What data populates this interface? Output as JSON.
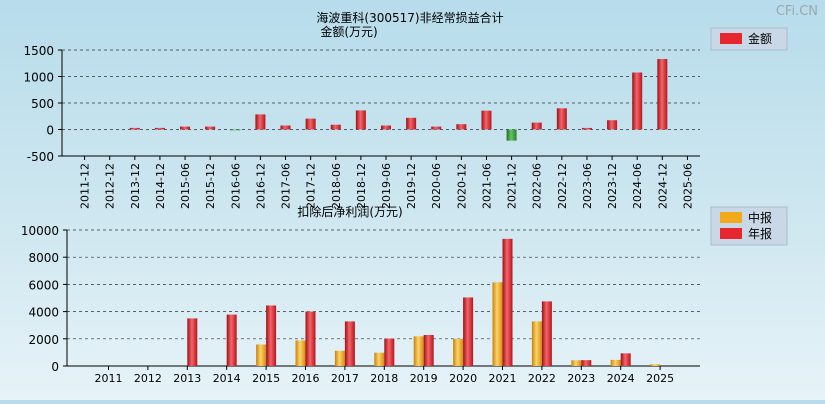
{
  "watermark": "CFi.CN",
  "chart_data": [
    {
      "type": "bar",
      "title": "海波重科(300517)非经常损益合计",
      "ylabel": "金额(万元)",
      "ylim": [
        -500,
        1500
      ],
      "yticks": [
        -500,
        0,
        500,
        1000,
        1500
      ],
      "grid": true,
      "legend_position": "top-right",
      "categories": [
        "2011-12",
        "2012-12",
        "2013-12",
        "2014-12",
        "2015-06",
        "2015-12",
        "2016-06",
        "2016-12",
        "2017-06",
        "2017-12",
        "2018-06",
        "2018-12",
        "2019-06",
        "2019-12",
        "2020-06",
        "2020-12",
        "2021-06",
        "2021-12",
        "2022-06",
        "2022-12",
        "2023-06",
        "2023-12",
        "2024-06",
        "2024-12",
        "2025-06"
      ],
      "series": [
        {
          "name": "金额",
          "color": "#e8262d",
          "negative_color": "#3a9a3a",
          "values": [
            0,
            0,
            30,
            30,
            55,
            55,
            -10,
            285,
            75,
            205,
            90,
            360,
            75,
            220,
            55,
            100,
            355,
            -210,
            130,
            400,
            30,
            175,
            1075,
            1330,
            0
          ]
        }
      ]
    },
    {
      "type": "bar",
      "title": "扣除后净利润(万元)",
      "ylim": [
        0,
        10000
      ],
      "yticks": [
        0,
        2000,
        4000,
        6000,
        8000,
        10000
      ],
      "grid": true,
      "legend_position": "top-right",
      "categories": [
        "2011",
        "2012",
        "2013",
        "2014",
        "2015",
        "2016",
        "2017",
        "2018",
        "2019",
        "2020",
        "2021",
        "2022",
        "2023",
        "2024",
        "2025"
      ],
      "series": [
        {
          "name": "中报",
          "color": "#f2a91c",
          "values": [
            0,
            0,
            0,
            0,
            1580,
            1880,
            1120,
            980,
            2180,
            2000,
            6150,
            3280,
            420,
            450,
            120
          ]
        },
        {
          "name": "年报",
          "color": "#e8262d",
          "values": [
            0,
            0,
            3500,
            3780,
            4450,
            4000,
            3280,
            2020,
            2280,
            5040,
            9350,
            4750,
            430,
            930,
            0
          ]
        }
      ]
    }
  ]
}
